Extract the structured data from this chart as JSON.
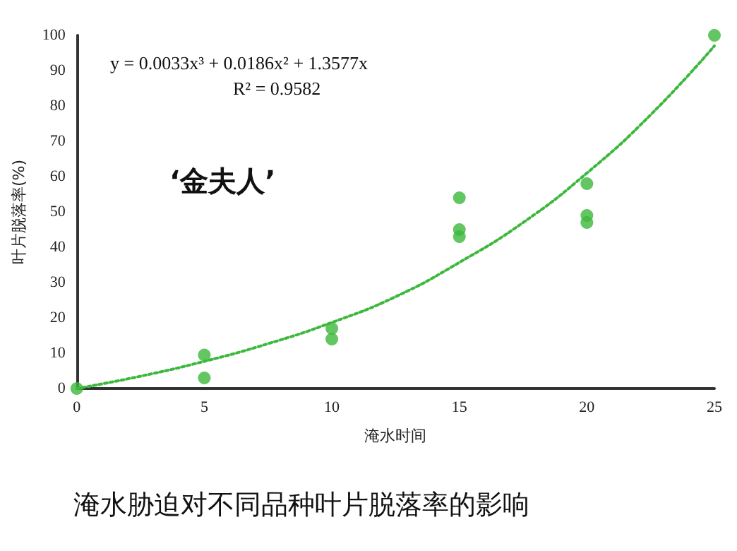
{
  "chart_data": {
    "type": "scatter",
    "xlabel": "淹水时间",
    "ylabel": "叶片脱落率(%)",
    "annotations": [
      "y = 0.0033x³ + 0.0186x² + 1.3577x",
      "R² = 0.9582",
      "‘金夫人’",
      "淹水胁迫对不同品种叶片脱落率的影响"
    ],
    "series": [
      {
        "color": "#3cb83c",
        "marker": "circle",
        "x": [
          0,
          5,
          5,
          10,
          10,
          15,
          15,
          15,
          20,
          20,
          20,
          25
        ],
        "values": [
          0,
          9.5,
          3,
          17,
          14,
          54,
          45,
          43,
          58,
          49,
          47,
          100
        ]
      },
      {
        "type": "line",
        "color": "#3cb83c",
        "line_style": "dotted",
        "marker": "none",
        "x": [
          0,
          2.5,
          5,
          7.5,
          10,
          12.5,
          15,
          17.5,
          20,
          22.5,
          25
        ],
        "values": [
          0,
          3.5,
          7.7,
          12.7,
          18.7,
          26,
          35.7,
          47,
          61,
          77.5,
          97
        ]
      }
    ],
    "xlim": [
      0,
      25
    ],
    "xticks": [
      0,
      5,
      10,
      15,
      20,
      25
    ],
    "ylim": [
      0,
      100
    ],
    "yticks": [
      0,
      10,
      20,
      30,
      40,
      50,
      60,
      70,
      80,
      90,
      100
    ],
    "grid": false
  }
}
